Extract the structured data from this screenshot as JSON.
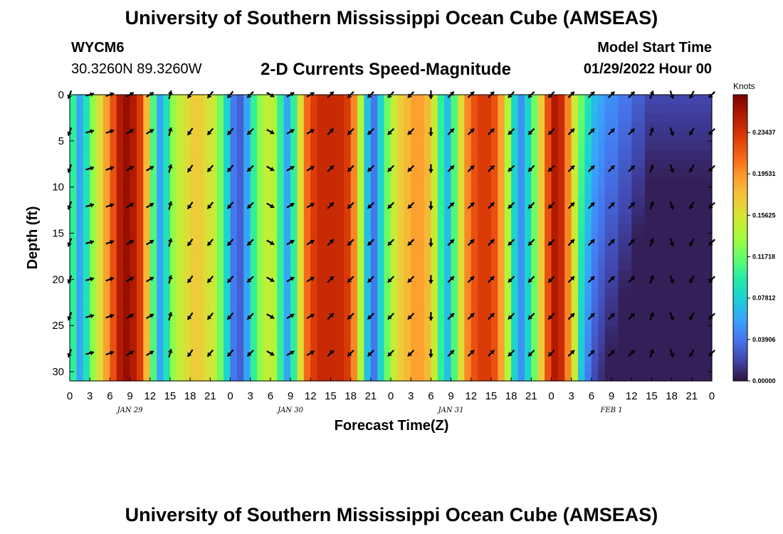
{
  "page": {
    "title": "University of Southern Mississippi Ocean Cube (AMSEAS)",
    "title_repeat": "University of Southern Mississippi Ocean Cube (AMSEAS)",
    "station_id": "WYCM6",
    "coordinates": "30.3260N  89.3260W",
    "chart_title": "2-D Currents Speed-Magnitude",
    "model_start_label": "Model Start Time",
    "model_start_value": "01/29/2022 Hour 00"
  },
  "chart_data": {
    "type": "heatmap",
    "title": "2-D Currents Speed-Magnitude",
    "xlabel": "Forecast Time(Z)",
    "ylabel": "Depth (ft)",
    "x_tick_labels": [
      "0",
      "3",
      "6",
      "9",
      "12",
      "15",
      "18",
      "21",
      "0",
      "3",
      "6",
      "9",
      "12",
      "15",
      "18",
      "21",
      "0",
      "3",
      "6",
      "9",
      "12",
      "15",
      "18",
      "21",
      "0",
      "3",
      "6",
      "9",
      "12",
      "15",
      "18",
      "21",
      "0"
    ],
    "date_labels": [
      {
        "label": "JAN 29",
        "hour": 9
      },
      {
        "label": "JAN 30",
        "hour": 33
      },
      {
        "label": "JAN 31",
        "hour": 57
      },
      {
        "label": "FEB 1",
        "hour": 81
      }
    ],
    "y_ticks": [
      0,
      5,
      10,
      15,
      20,
      25,
      30
    ],
    "xlim": [
      0,
      96
    ],
    "ylim": [
      0,
      31
    ],
    "colorbar": {
      "unit": "Knots",
      "ticks": [
        0.0,
        0.039062,
        0.078125,
        0.117188,
        0.15625,
        0.195312,
        0.234375
      ],
      "tick_labels": [
        "0.00000",
        "0.03906",
        "0.07812",
        "0.11718",
        "0.15625",
        "0.19531",
        "0.23437"
      ],
      "range": [
        0,
        0.27
      ],
      "colors": [
        "#30123b",
        "#4145ab",
        "#4675ed",
        "#39a2fc",
        "#1bcfd4",
        "#24eca6",
        "#61fc6c",
        "#a4fc3b",
        "#d1e834",
        "#f3c63a",
        "#fe9b2d",
        "#f36315",
        "#d93806",
        "#b11901",
        "#7a0402"
      ]
    },
    "speed_by_hour_knots": [
      0.1,
      0.06,
      0.09,
      0.13,
      0.16,
      0.19,
      0.22,
      0.25,
      0.26,
      0.25,
      0.23,
      0.18,
      0.11,
      0.06,
      0.09,
      0.13,
      0.15,
      0.16,
      0.17,
      0.17,
      0.16,
      0.15,
      0.12,
      0.08,
      0.04,
      0.03,
      0.06,
      0.1,
      0.13,
      0.15,
      0.14,
      0.1,
      0.06,
      0.1,
      0.16,
      0.21,
      0.23,
      0.24,
      0.24,
      0.24,
      0.24,
      0.23,
      0.2,
      0.14,
      0.07,
      0.04,
      0.08,
      0.12,
      0.15,
      0.17,
      0.18,
      0.19,
      0.19,
      0.18,
      0.15,
      0.1,
      0.07,
      0.11,
      0.16,
      0.2,
      0.22,
      0.23,
      0.23,
      0.22,
      0.19,
      0.14,
      0.08,
      0.05,
      0.08,
      0.12,
      0.17,
      0.22,
      0.25,
      0.24,
      0.2,
      0.15,
      0.12,
      0.09,
      0.07,
      0.06,
      0.05,
      0.05,
      0.04,
      0.04,
      0.03,
      0.03,
      0.02,
      0.02,
      0.02,
      0.02,
      0.02,
      0.02,
      0.02,
      0.02,
      0.02,
      0.02,
      0.02
    ],
    "vector_depths_ft": [
      0,
      4,
      8,
      12,
      16,
      20,
      24,
      28
    ],
    "vector_times_hours": [
      0,
      3,
      6,
      9,
      12,
      15,
      18,
      21,
      24,
      27,
      30,
      33,
      36,
      39,
      42,
      45,
      48,
      51,
      54,
      57,
      60,
      63,
      66,
      69,
      72,
      75,
      78,
      81,
      84,
      87,
      90,
      93,
      96
    ],
    "vector_direction_deg_by_time": [
      200,
      75,
      70,
      60,
      60,
      15,
      215,
      220,
      220,
      225,
      120,
      60,
      60,
      45,
      225,
      225,
      225,
      225,
      180,
      45,
      45,
      45,
      225,
      225,
      225,
      45,
      45,
      45,
      45,
      20,
      160,
      210,
      225
    ]
  }
}
